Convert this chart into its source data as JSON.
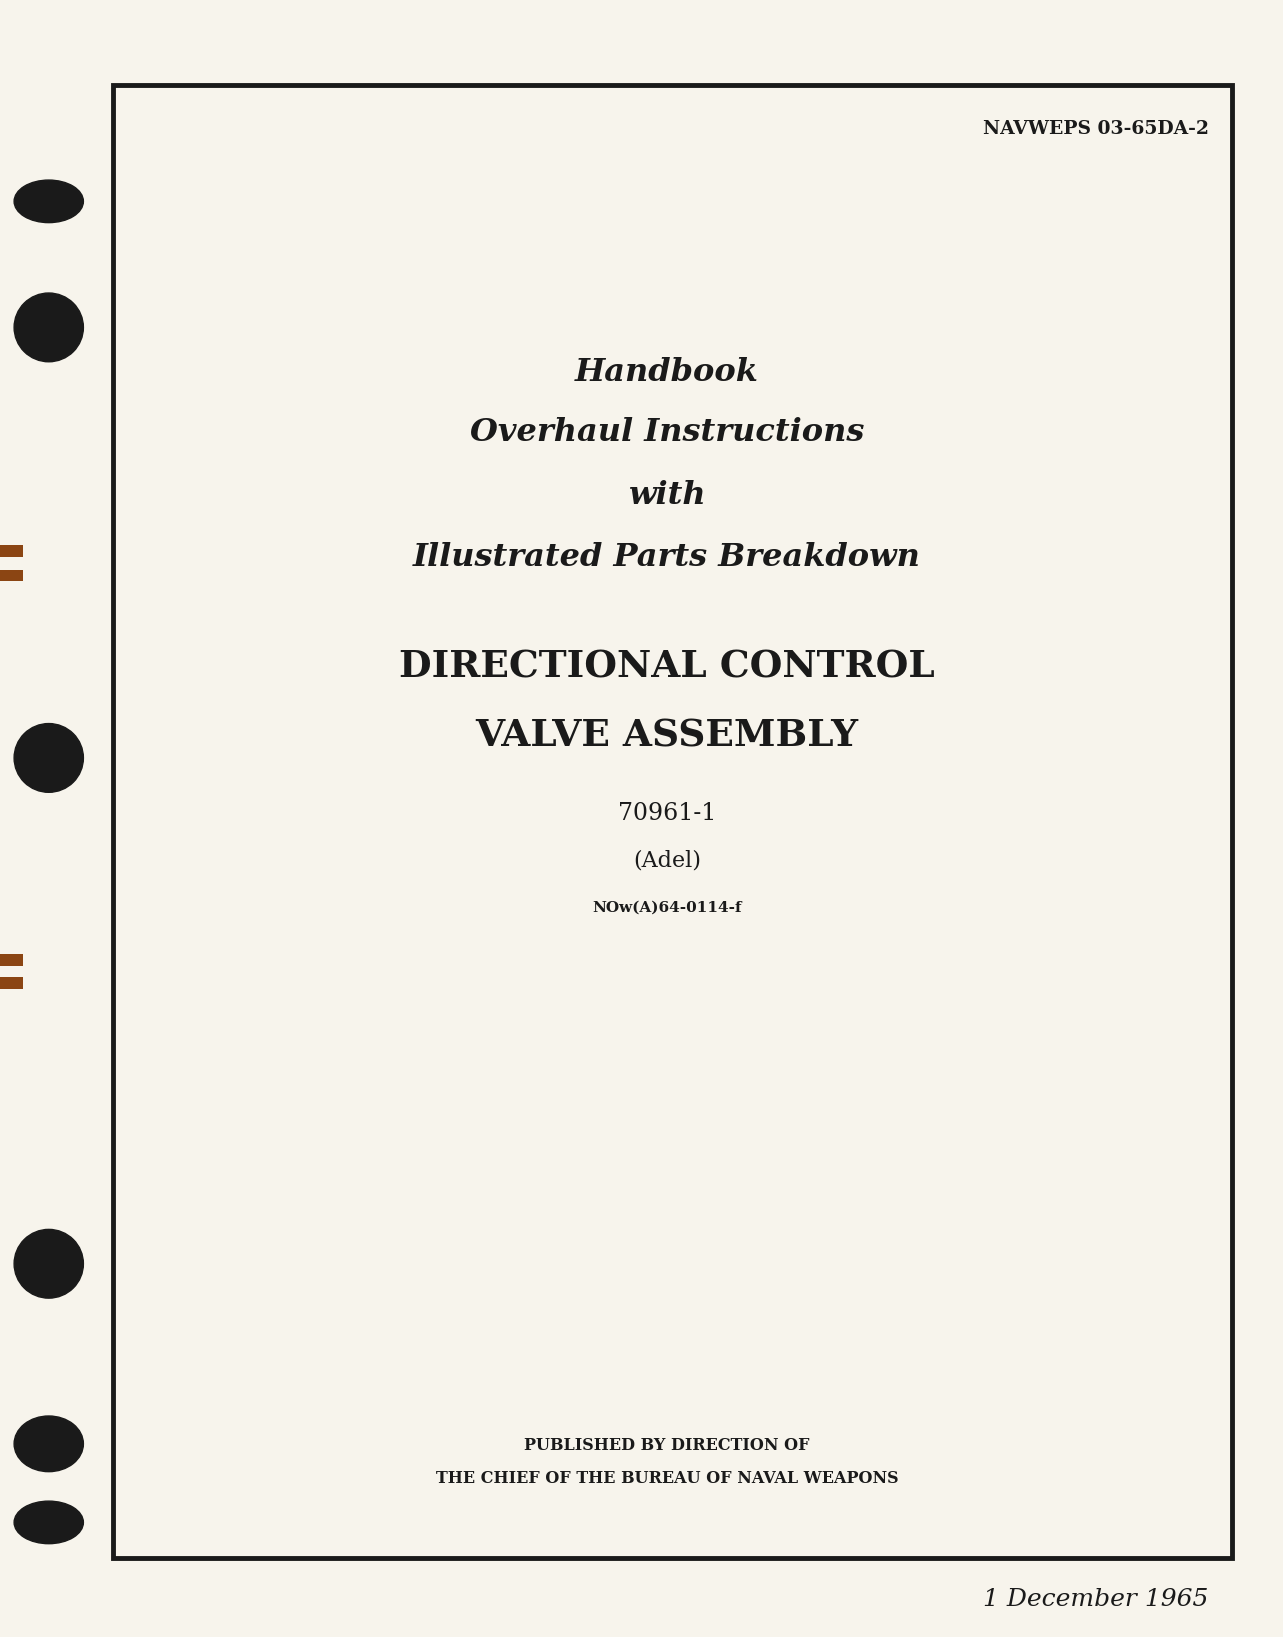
{
  "bg_color": "#f0ece0",
  "page_bg": "#f7f4ec",
  "border_color": "#1a1a1a",
  "text_color": "#1a1a1a",
  "navweps_text": "NAVWEPS 03-65DA-2",
  "title_line1": "Handbook",
  "title_line2": "Overhaul Instructions",
  "title_line3": "with",
  "title_line4": "Illustrated Parts Breakdown",
  "subtitle_line1": "DIRECTIONAL CONTROL",
  "subtitle_line2": "VALVE ASSEMBLY",
  "part_number": "70961-1",
  "manufacturer": "(Adel)",
  "contract": "NOw(A)64-0114-f",
  "publisher_line1": "PUBLISHED BY DIRECTION OF",
  "publisher_line2": "THE CHIEF OF THE BUREAU OF NAVAL WEAPONS",
  "date": "1 December 1965",
  "hole_color": "#1a1a1a",
  "staple_color": "#8B4513"
}
